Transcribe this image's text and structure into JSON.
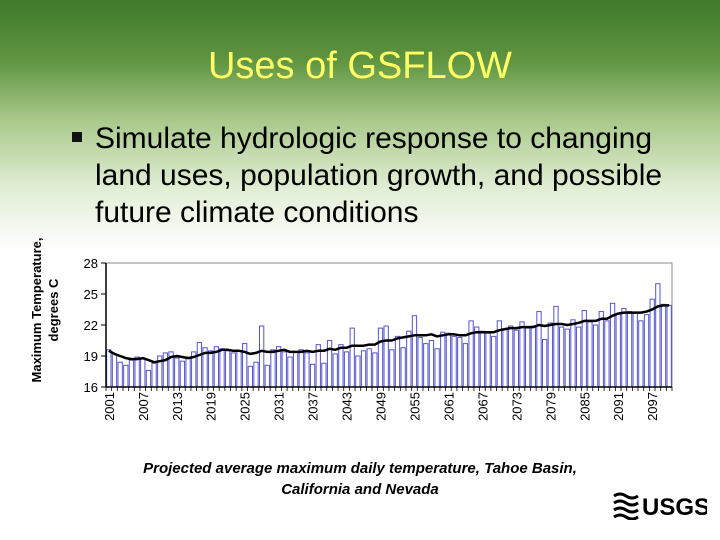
{
  "slide": {
    "title": "Uses of GSFLOW",
    "bullet": "Simulate hydrologic response to changing land uses, population growth, and possible future climate conditions",
    "caption_line1": "Projected average maximum daily temperature, Tahoe Basin,",
    "caption_line2": "California and Nevada",
    "logo_text": "USGS"
  },
  "chart_data": {
    "type": "bar",
    "ylabel_line1": "Maximum Temperature,",
    "ylabel_line2": "degrees C",
    "ylim": [
      16,
      28
    ],
    "yticks": [
      16,
      19,
      22,
      25,
      28
    ],
    "x_start": 2001,
    "x_end": 2100,
    "xtick_labels": [
      "2001",
      "2007",
      "2013",
      "2019",
      "2025",
      "2031",
      "2037",
      "2043",
      "2049",
      "2055",
      "2061",
      "2067",
      "2073",
      "2079",
      "2085",
      "2091",
      "2097"
    ],
    "colors": {
      "bar_fill": "#ffffff",
      "bar_stroke": "#5555cc",
      "line": "#000000"
    },
    "series": [
      {
        "type": "bar",
        "values": [
          19.6,
          19.2,
          18.4,
          18.1,
          18.6,
          18.9,
          18.7,
          17.6,
          18.3,
          19.0,
          19.3,
          19.4,
          18.8,
          18.5,
          18.9,
          19.4,
          20.3,
          19.8,
          19.5,
          19.9,
          19.7,
          19.5,
          19.3,
          19.5,
          20.2,
          18.0,
          18.4,
          21.9,
          18.1,
          19.6,
          19.9,
          19.4,
          18.9,
          19.4,
          19.6,
          19.3,
          18.2,
          20.1,
          18.3,
          20.5,
          19.2,
          20.1,
          19.4,
          21.7,
          19.0,
          19.5,
          19.7,
          19.3,
          21.7,
          21.9,
          19.6,
          20.9,
          19.8,
          21.4,
          22.9,
          20.8,
          20.2,
          20.5,
          19.7,
          21.3,
          21.2,
          20.9,
          20.8,
          20.2,
          22.4,
          21.8,
          21.4,
          21.2,
          20.9,
          22.4,
          21.6,
          21.9,
          21.5,
          22.3,
          21.7,
          21.9,
          23.3,
          20.6,
          22.2,
          23.8,
          21.8,
          21.6,
          22.5,
          21.8,
          23.4,
          22.3,
          22.0,
          23.3,
          22.4,
          24.1,
          23.1,
          23.6,
          23.3,
          23.2,
          22.4,
          23.0,
          24.5,
          26.0,
          24.0,
          23.9
        ]
      },
      {
        "type": "line",
        "values": [
          19.5,
          19.2,
          19.0,
          18.8,
          18.7,
          18.7,
          18.8,
          18.6,
          18.4,
          18.5,
          18.6,
          18.9,
          19.0,
          18.9,
          18.8,
          18.9,
          19.1,
          19.3,
          19.3,
          19.4,
          19.6,
          19.6,
          19.5,
          19.5,
          19.4,
          19.2,
          19.3,
          19.5,
          19.4,
          19.4,
          19.5,
          19.6,
          19.4,
          19.4,
          19.4,
          19.5,
          19.4,
          19.5,
          19.5,
          19.7,
          19.6,
          19.8,
          19.8,
          20.0,
          20.0,
          20.0,
          20.1,
          20.1,
          20.4,
          20.5,
          20.5,
          20.7,
          20.8,
          20.9,
          21.0,
          21.0,
          21.0,
          21.1,
          20.9,
          21.0,
          21.1,
          21.1,
          21.0,
          21.0,
          21.2,
          21.3,
          21.3,
          21.3,
          21.3,
          21.5,
          21.6,
          21.7,
          21.7,
          21.8,
          21.8,
          21.8,
          22.0,
          21.9,
          22.0,
          22.1,
          22.1,
          22.0,
          22.1,
          22.2,
          22.4,
          22.4,
          22.4,
          22.6,
          22.6,
          22.9,
          23.1,
          23.2,
          23.2,
          23.2,
          23.2,
          23.3,
          23.5,
          23.8,
          23.9,
          23.9
        ]
      }
    ]
  }
}
